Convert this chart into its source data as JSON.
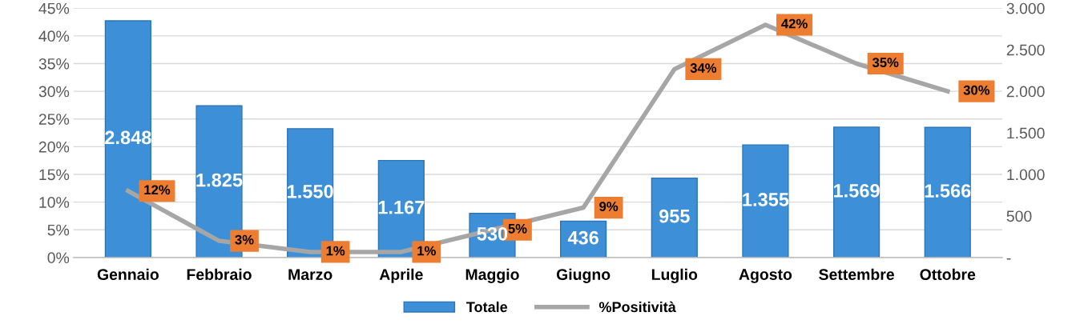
{
  "chart_data": {
    "type": "bar",
    "categories": [
      "Gennaio",
      "Febbraio",
      "Marzo",
      "Aprile",
      "Maggio",
      "Giugno",
      "Luglio",
      "Agosto",
      "Settembre",
      "Ottobre"
    ],
    "series": [
      {
        "name": "Totale",
        "axis": "y2",
        "color": "#3d8fd8",
        "values": [
          2848,
          1825,
          1550,
          1167,
          530,
          436,
          955,
          1355,
          1569,
          1566
        ],
        "value_labels": [
          "2.848",
          "1.825",
          "1.550",
          "1.167",
          "530",
          "436",
          "955",
          "1.355",
          "1.569",
          "1.566"
        ]
      },
      {
        "name": "%Positività",
        "type": "line",
        "color": "#a6a6a6",
        "values": [
          12,
          3,
          1,
          1,
          5,
          9,
          34,
          42,
          35,
          30
        ],
        "value_labels": [
          "12%",
          "3%",
          "1%",
          "1%",
          "5%",
          "9%",
          "34%",
          "42%",
          "35%",
          "30%"
        ]
      }
    ],
    "ylim": [
      0,
      45
    ],
    "yticks": [
      {
        "value": 0,
        "label": "0%"
      },
      {
        "value": 5,
        "label": "5%"
      },
      {
        "value": 10,
        "label": "10%"
      },
      {
        "value": 15,
        "label": "15%"
      },
      {
        "value": 20,
        "label": "20%"
      },
      {
        "value": 25,
        "label": "25%"
      },
      {
        "value": 30,
        "label": "30%"
      },
      {
        "value": 35,
        "label": "35%"
      },
      {
        "value": 40,
        "label": "40%"
      },
      {
        "value": 45,
        "label": "45%"
      }
    ],
    "y2lim": [
      0,
      3000
    ],
    "y2ticks": [
      {
        "value": 0,
        "label": "-"
      },
      {
        "value": 500,
        "label": "500"
      },
      {
        "value": 1000,
        "label": "1.000"
      },
      {
        "value": 1500,
        "label": "1.500"
      },
      {
        "value": 2000,
        "label": "2.000"
      },
      {
        "value": 2500,
        "label": "2.500"
      },
      {
        "value": 3000,
        "label": "3.000"
      }
    ],
    "grid": "y",
    "legend": "bottom",
    "marker": "none",
    "line_style": "solid"
  }
}
